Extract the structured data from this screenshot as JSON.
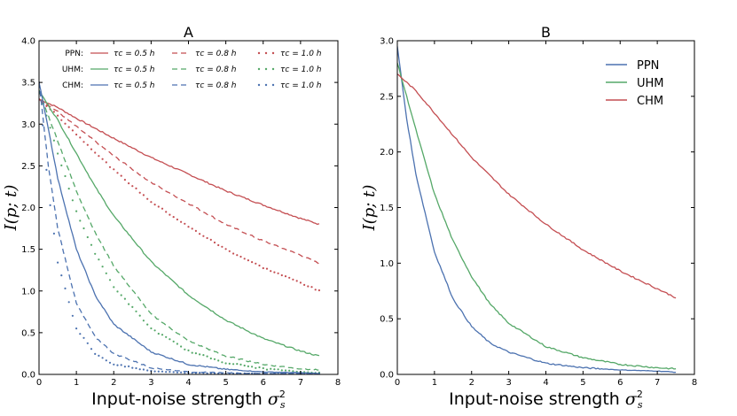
{
  "chart_data": [
    {
      "type": "line",
      "title": "A",
      "xlabel": "Input-noise strength σ²ₛ",
      "ylabel": "I(p; t)",
      "xlim": [
        0,
        8
      ],
      "ylim": [
        0,
        4.0
      ],
      "xticks": [
        "0",
        "1",
        "2",
        "3",
        "4",
        "5",
        "6",
        "7",
        "8"
      ],
      "yticks": [
        "0.0",
        "0.5",
        "1.0",
        "1.5",
        "2.0",
        "2.5",
        "3.0",
        "3.5",
        "4.0"
      ],
      "legend": {
        "placement": "top",
        "row_labels": [
          "PPN:",
          "UHM:",
          "CHM:"
        ],
        "entry_labels": [
          "τc = 0.5 h",
          "τc = 0.8 h",
          "τc = 1.0 h"
        ]
      },
      "series": [
        {
          "model": "PPN",
          "tau": "0.5",
          "color": "#c44e52",
          "style": "solid",
          "x": [
            0,
            0.5,
            1,
            2,
            3,
            4,
            5,
            6,
            7,
            7.5
          ],
          "y": [
            3.3,
            3.2,
            3.07,
            2.83,
            2.6,
            2.4,
            2.2,
            2.03,
            1.87,
            1.8
          ]
        },
        {
          "model": "PPN",
          "tau": "0.8",
          "color": "#c44e52",
          "style": "dashed",
          "x": [
            0,
            0.5,
            1,
            2,
            3,
            4,
            5,
            6,
            7,
            7.5
          ],
          "y": [
            3.3,
            3.15,
            2.97,
            2.62,
            2.3,
            2.05,
            1.8,
            1.6,
            1.43,
            1.33
          ]
        },
        {
          "model": "PPN",
          "tau": "1.0",
          "color": "#c44e52",
          "style": "dotted",
          "x": [
            0,
            0.5,
            1,
            2,
            3,
            4,
            5,
            6,
            7,
            7.5
          ],
          "y": [
            3.3,
            3.1,
            2.88,
            2.45,
            2.07,
            1.77,
            1.5,
            1.28,
            1.1,
            1.0
          ]
        },
        {
          "model": "UHM",
          "tau": "0.5",
          "color": "#55a868",
          "style": "solid",
          "x": [
            0,
            0.5,
            1,
            1.5,
            2,
            3,
            4,
            5,
            6,
            7,
            7.5
          ],
          "y": [
            3.4,
            3.05,
            2.65,
            2.25,
            1.9,
            1.35,
            0.95,
            0.65,
            0.43,
            0.28,
            0.22
          ]
        },
        {
          "model": "UHM",
          "tau": "0.8",
          "color": "#55a868",
          "style": "dashed",
          "x": [
            0,
            0.5,
            1,
            1.5,
            2,
            3,
            4,
            5,
            6,
            7,
            7.5
          ],
          "y": [
            3.4,
            2.8,
            2.2,
            1.7,
            1.3,
            0.72,
            0.4,
            0.22,
            0.12,
            0.07,
            0.05
          ]
        },
        {
          "model": "UHM",
          "tau": "1.0",
          "color": "#55a868",
          "style": "dotted",
          "x": [
            0,
            0.5,
            1,
            1.5,
            2,
            3,
            4,
            5,
            6,
            7,
            7.5
          ],
          "y": [
            3.4,
            2.65,
            1.95,
            1.45,
            1.05,
            0.55,
            0.28,
            0.14,
            0.07,
            0.03,
            0.02
          ]
        },
        {
          "model": "CHM",
          "tau": "0.5",
          "color": "#4c72b0",
          "style": "solid",
          "x": [
            0,
            0.25,
            0.5,
            1,
            1.5,
            2,
            3,
            4,
            5,
            6,
            7,
            7.5
          ],
          "y": [
            3.5,
            2.95,
            2.35,
            1.5,
            0.95,
            0.6,
            0.27,
            0.12,
            0.06,
            0.03,
            0.02,
            0.01
          ]
        },
        {
          "model": "CHM",
          "tau": "0.8",
          "color": "#4c72b0",
          "style": "dashed",
          "x": [
            0,
            0.25,
            0.5,
            1,
            1.5,
            2,
            3,
            4,
            5,
            6,
            7,
            7.5
          ],
          "y": [
            3.5,
            2.5,
            1.75,
            0.85,
            0.45,
            0.25,
            0.08,
            0.03,
            0.02,
            0.01,
            0.01,
            0.01
          ]
        },
        {
          "model": "CHM",
          "tau": "1.0",
          "color": "#4c72b0",
          "style": "dotted",
          "x": [
            0,
            0.25,
            0.5,
            1,
            1.5,
            2,
            3,
            4,
            5,
            6,
            7,
            7.5
          ],
          "y": [
            3.5,
            2.2,
            1.35,
            0.55,
            0.25,
            0.12,
            0.04,
            0.02,
            0.01,
            0.01,
            0.01,
            0.01
          ]
        }
      ]
    },
    {
      "type": "line",
      "title": "B",
      "xlabel": "Input-noise strength σ²ₛ",
      "ylabel": "I(p; t)",
      "xlim": [
        0,
        8
      ],
      "ylim": [
        0,
        3.0
      ],
      "xticks": [
        "0",
        "1",
        "2",
        "3",
        "4",
        "5",
        "6",
        "7",
        "8"
      ],
      "yticks": [
        "0.0",
        "0.5",
        "1.0",
        "1.5",
        "2.0",
        "2.5",
        "3.0"
      ],
      "legend": {
        "placement": "top-right"
      },
      "series": [
        {
          "name": "PPN",
          "color": "#4c72b0",
          "x": [
            0,
            0.25,
            0.5,
            1,
            1.5,
            2,
            2.5,
            3,
            4,
            5,
            6,
            7,
            7.5
          ],
          "y": [
            2.95,
            2.3,
            1.8,
            1.1,
            0.68,
            0.43,
            0.28,
            0.2,
            0.1,
            0.06,
            0.04,
            0.03,
            0.02
          ]
        },
        {
          "name": "UHM",
          "color": "#55a868",
          "x": [
            0,
            0.5,
            1,
            1.5,
            2,
            2.5,
            3,
            4,
            5,
            6,
            7,
            7.5
          ],
          "y": [
            2.8,
            2.2,
            1.62,
            1.2,
            0.88,
            0.63,
            0.46,
            0.25,
            0.15,
            0.09,
            0.06,
            0.05
          ]
        },
        {
          "name": "CHM",
          "color": "#c44e52",
          "x": [
            0,
            0.5,
            1,
            1.5,
            2,
            3,
            4,
            5,
            6,
            7,
            7.5
          ],
          "y": [
            2.7,
            2.55,
            2.35,
            2.15,
            1.95,
            1.62,
            1.35,
            1.12,
            0.93,
            0.77,
            0.69
          ]
        }
      ]
    }
  ]
}
